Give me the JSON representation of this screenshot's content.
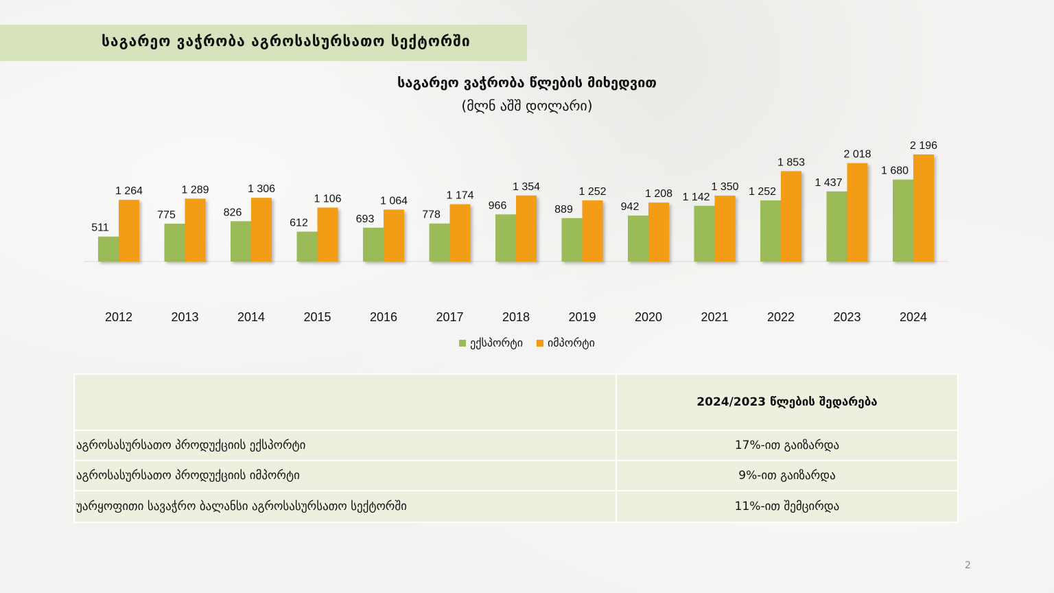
{
  "header": {
    "title": "საგარეო ვაჭრობა აგროსასურსათო სექტორში"
  },
  "chart_data": {
    "type": "bar",
    "title": "საგარეო ვაჭრობა წლების მიხედვით",
    "subtitle": "(მლნ აშშ დოლარი)",
    "categories": [
      "2012",
      "2013",
      "2014",
      "2015",
      "2016",
      "2017",
      "2018",
      "2019",
      "2020",
      "2021",
      "2022",
      "2023",
      "2024"
    ],
    "series": [
      {
        "name": "ექსპორტი",
        "color": "#9bbb59",
        "values": [
          511,
          775,
          826,
          612,
          693,
          778,
          966,
          889,
          942,
          1142,
          1252,
          1437,
          1680
        ],
        "labels": [
          "511",
          "775",
          "826",
          "612",
          "693",
          "778",
          "966",
          "889",
          "942",
          "1 142",
          "1 252",
          "1 437",
          "1 680"
        ]
      },
      {
        "name": "იმპორტი",
        "color": "#f39c12",
        "values": [
          1264,
          1289,
          1306,
          1106,
          1064,
          1174,
          1354,
          1252,
          1208,
          1350,
          1853,
          2018,
          2196
        ],
        "labels": [
          "1 264",
          "1 289",
          "1 306",
          "1 106",
          "1 064",
          "1 174",
          "1 354",
          "1 252",
          "1 208",
          "1 350",
          "1 853",
          "2 018",
          "2 196"
        ]
      }
    ],
    "ylim": [
      0,
      2196
    ],
    "grid": false,
    "legend_position": "bottom"
  },
  "table": {
    "header": {
      "label": "",
      "value": "2024/2023 წლების შედარება"
    },
    "rows": [
      {
        "label": "აგროსასურსათო პროდუქციის ექსპორტი",
        "value": "17%-ით გაიზარდა"
      },
      {
        "label": "აგროსასურსათო პროდუქციის იმპორტი",
        "value": "9%-ით გაიზარდა"
      },
      {
        "label": "უარყოფითი სავაჭრო ბალანსი აგროსასურსათო სექტორში",
        "value": "11%-ით შემცირდა"
      }
    ]
  },
  "page_number": "2"
}
